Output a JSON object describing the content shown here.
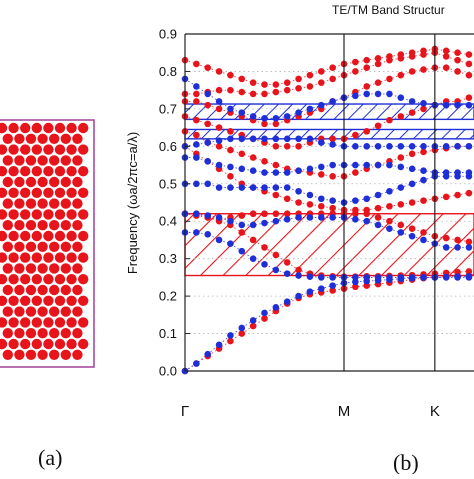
{
  "figure": {
    "panel_a_label": "(a)",
    "panel_b_label": "(b)"
  },
  "chart_data": {
    "type": "scatter",
    "title": "TE/TM Band Structur",
    "ylabel": "Frequency (ωa/2πc=a/λ)",
    "xlabel": "",
    "ylim": [
      0,
      0.9
    ],
    "yticks": [
      0.0,
      0.1,
      0.2,
      0.3,
      0.4,
      0.5,
      0.6,
      0.7,
      0.8,
      0.9
    ],
    "xticks": [
      {
        "label": "Γ",
        "k": 0
      },
      {
        "label": "M",
        "k": 7
      },
      {
        "label": "K",
        "k": 11
      }
    ],
    "grid": "dotted horizontal",
    "colors": {
      "te": "#e8141c",
      "tm": "#1f2fd8",
      "axis": "#222222"
    },
    "gaps": [
      {
        "name": "TE gap",
        "color": "#e8141c",
        "hatch": "diagonal",
        "range": [
          0.255,
          0.42
        ]
      },
      {
        "name": "TM gap",
        "color": "#1f2fd8",
        "hatch": "diagonal",
        "range": [
          0.672,
          0.713
        ]
      },
      {
        "name": "TM gap",
        "color": "#1f2fd8",
        "hatch": "diagonal",
        "range": [
          0.62,
          0.645
        ]
      }
    ],
    "k": [
      0,
      0.5,
      1,
      1.5,
      2,
      2.5,
      3,
      3.5,
      4,
      4.5,
      5,
      5.5,
      6,
      6.5,
      7,
      7.5,
      8,
      8.5,
      9,
      9.5,
      10,
      10.5,
      11,
      11.5,
      12,
      12.5
    ],
    "series": [
      {
        "polarization": "TE",
        "name": "",
        "color": "#e8141c",
        "bands": [
          [
            0.0,
            0.02,
            0.04,
            0.06,
            0.08,
            0.1,
            0.12,
            0.14,
            0.16,
            0.18,
            0.195,
            0.205,
            0.21,
            0.215,
            0.22,
            0.225,
            0.228,
            0.232,
            0.236,
            0.24,
            0.244,
            0.248,
            0.25,
            0.252,
            0.254,
            0.255
          ],
          [
            0.42,
            0.42,
            0.41,
            0.4,
            0.39,
            0.37,
            0.35,
            0.33,
            0.31,
            0.29,
            0.27,
            0.26,
            0.255,
            0.253,
            0.252,
            0.252,
            0.253,
            0.253,
            0.254,
            0.255,
            0.256,
            0.258,
            0.26,
            0.262,
            0.264,
            0.266
          ],
          [
            0.42,
            0.415,
            0.41,
            0.405,
            0.41,
            0.415,
            0.42,
            0.42,
            0.42,
            0.42,
            0.42,
            0.42,
            0.42,
            0.42,
            0.42,
            0.42,
            0.42,
            0.41,
            0.4,
            0.39,
            0.38,
            0.37,
            0.36,
            0.355,
            0.35,
            0.345
          ],
          [
            0.6,
            0.58,
            0.56,
            0.54,
            0.52,
            0.5,
            0.49,
            0.48,
            0.47,
            0.46,
            0.45,
            0.445,
            0.44,
            0.435,
            0.43,
            0.43,
            0.43,
            0.435,
            0.44,
            0.445,
            0.45,
            0.455,
            0.46,
            0.465,
            0.47,
            0.475
          ],
          [
            0.64,
            0.63,
            0.61,
            0.6,
            0.59,
            0.58,
            0.57,
            0.56,
            0.55,
            0.54,
            0.535,
            0.53,
            0.525,
            0.52,
            0.52,
            0.53,
            0.54,
            0.55,
            0.56,
            0.57,
            0.58,
            0.585,
            0.59,
            0.595,
            0.6,
            0.6
          ],
          [
            0.68,
            0.67,
            0.66,
            0.65,
            0.64,
            0.63,
            0.62,
            0.61,
            0.6,
            0.6,
            0.6,
            0.61,
            0.62,
            0.62,
            0.62,
            0.63,
            0.64,
            0.655,
            0.67,
            0.68,
            0.69,
            0.7,
            0.71,
            0.72,
            0.72,
            0.73
          ],
          [
            0.72,
            0.72,
            0.71,
            0.7,
            0.69,
            0.68,
            0.67,
            0.66,
            0.66,
            0.67,
            0.68,
            0.69,
            0.7,
            0.72,
            0.73,
            0.745,
            0.76,
            0.77,
            0.78,
            0.79,
            0.8,
            0.805,
            0.81,
            0.81,
            0.8,
            0.79
          ],
          [
            0.74,
            0.74,
            0.745,
            0.75,
            0.75,
            0.745,
            0.74,
            0.74,
            0.745,
            0.75,
            0.755,
            0.76,
            0.77,
            0.78,
            0.79,
            0.8,
            0.81,
            0.82,
            0.83,
            0.835,
            0.84,
            0.845,
            0.85,
            0.84,
            0.83,
            0.82
          ],
          [
            0.83,
            0.82,
            0.81,
            0.8,
            0.79,
            0.78,
            0.77,
            0.765,
            0.765,
            0.77,
            0.78,
            0.79,
            0.8,
            0.81,
            0.82,
            0.825,
            0.83,
            0.835,
            0.84,
            0.845,
            0.85,
            0.855,
            0.86,
            0.855,
            0.85,
            0.845
          ]
        ]
      },
      {
        "polarization": "TM",
        "name": "",
        "color": "#1f2fd8",
        "bands": [
          [
            0.0,
            0.02,
            0.045,
            0.07,
            0.095,
            0.115,
            0.135,
            0.155,
            0.17,
            0.185,
            0.2,
            0.212,
            0.22,
            0.228,
            0.235,
            0.238,
            0.24,
            0.242,
            0.244,
            0.246,
            0.248,
            0.25,
            0.25,
            0.251,
            0.252,
            0.253
          ],
          [
            0.37,
            0.37,
            0.365,
            0.35,
            0.34,
            0.32,
            0.3,
            0.285,
            0.27,
            0.26,
            0.255,
            0.252,
            0.25,
            0.25,
            0.25,
            0.25,
            0.25,
            0.25,
            0.25,
            0.25,
            0.25,
            0.25,
            0.25,
            0.25,
            0.25,
            0.25
          ],
          [
            0.42,
            0.42,
            0.415,
            0.41,
            0.4,
            0.39,
            0.39,
            0.395,
            0.4,
            0.405,
            0.41,
            0.41,
            0.41,
            0.41,
            0.41,
            0.405,
            0.4,
            0.39,
            0.38,
            0.37,
            0.36,
            0.35,
            0.34,
            0.33,
            0.33,
            0.33
          ],
          [
            0.5,
            0.5,
            0.5,
            0.49,
            0.49,
            0.49,
            0.49,
            0.49,
            0.49,
            0.49,
            0.48,
            0.47,
            0.46,
            0.455,
            0.45,
            0.455,
            0.46,
            0.47,
            0.48,
            0.49,
            0.5,
            0.51,
            0.52,
            0.52,
            0.52,
            0.52
          ],
          [
            0.57,
            0.57,
            0.56,
            0.55,
            0.545,
            0.54,
            0.535,
            0.53,
            0.53,
            0.53,
            0.535,
            0.54,
            0.545,
            0.55,
            0.55,
            0.55,
            0.55,
            0.55,
            0.55,
            0.545,
            0.54,
            0.535,
            0.53,
            0.53,
            0.53,
            0.53
          ],
          [
            0.6,
            0.605,
            0.61,
            0.615,
            0.62,
            0.62,
            0.62,
            0.62,
            0.62,
            0.62,
            0.62,
            0.62,
            0.61,
            0.605,
            0.6,
            0.6,
            0.6,
            0.6,
            0.6,
            0.6,
            0.6,
            0.6,
            0.6,
            0.6,
            0.6,
            0.6
          ],
          [
            0.78,
            0.76,
            0.74,
            0.72,
            0.7,
            0.69,
            0.68,
            0.675,
            0.675,
            0.68,
            0.69,
            0.7,
            0.71,
            0.72,
            0.73,
            0.735,
            0.74,
            0.74,
            0.74,
            0.73,
            0.72,
            0.715,
            0.71,
            0.71,
            0.71,
            0.71
          ]
        ]
      }
    ]
  }
}
